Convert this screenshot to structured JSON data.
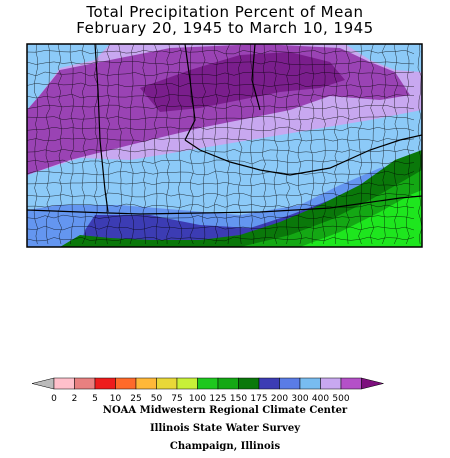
{
  "title": {
    "line1": "Total Precipitation Percent of Mean",
    "line2": "February 20, 1945 to March 10, 1945"
  },
  "legend": {
    "bins": [
      {
        "label": "0",
        "color": "#ffc0cb"
      },
      {
        "label": "2",
        "color": "#e88080"
      },
      {
        "label": "5",
        "color": "#ee1c1c"
      },
      {
        "label": "10",
        "color": "#ff6a2a"
      },
      {
        "label": "25",
        "color": "#ffb838"
      },
      {
        "label": "50",
        "color": "#e8d838"
      },
      {
        "label": "75",
        "color": "#c8f038"
      },
      {
        "label": "100",
        "color": "#1ec81e"
      },
      {
        "label": "125",
        "color": "#14a814"
      },
      {
        "label": "150",
        "color": "#0a780a"
      },
      {
        "label": "175",
        "color": "#3c3cb4"
      },
      {
        "label": "200",
        "color": "#5a7ce6"
      },
      {
        "label": "300",
        "color": "#78bcf0"
      },
      {
        "label": "400",
        "color": "#c8a8f0"
      },
      {
        "label": "500",
        "color": "#b450c8"
      }
    ],
    "under_color": "#bbbbbb",
    "over_color": "#7d0f7d"
  },
  "map_colors": {
    "darkest_purple": "#7a1e8c",
    "purple": "#9a43b4",
    "light_purple": "#c8a8f0",
    "light_blue": "#8ccaf8",
    "medium_blue": "#6496f0",
    "dark_blue": "#3c3cb4",
    "dark_green": "#0a780a",
    "green": "#14a814",
    "bright_green": "#1ee61e",
    "border": "#000000"
  },
  "credits": {
    "line1": "NOAA Midwestern Regional Climate Center",
    "line2": "Illinois State Water Survey",
    "line3": "Champaign, Illinois"
  }
}
